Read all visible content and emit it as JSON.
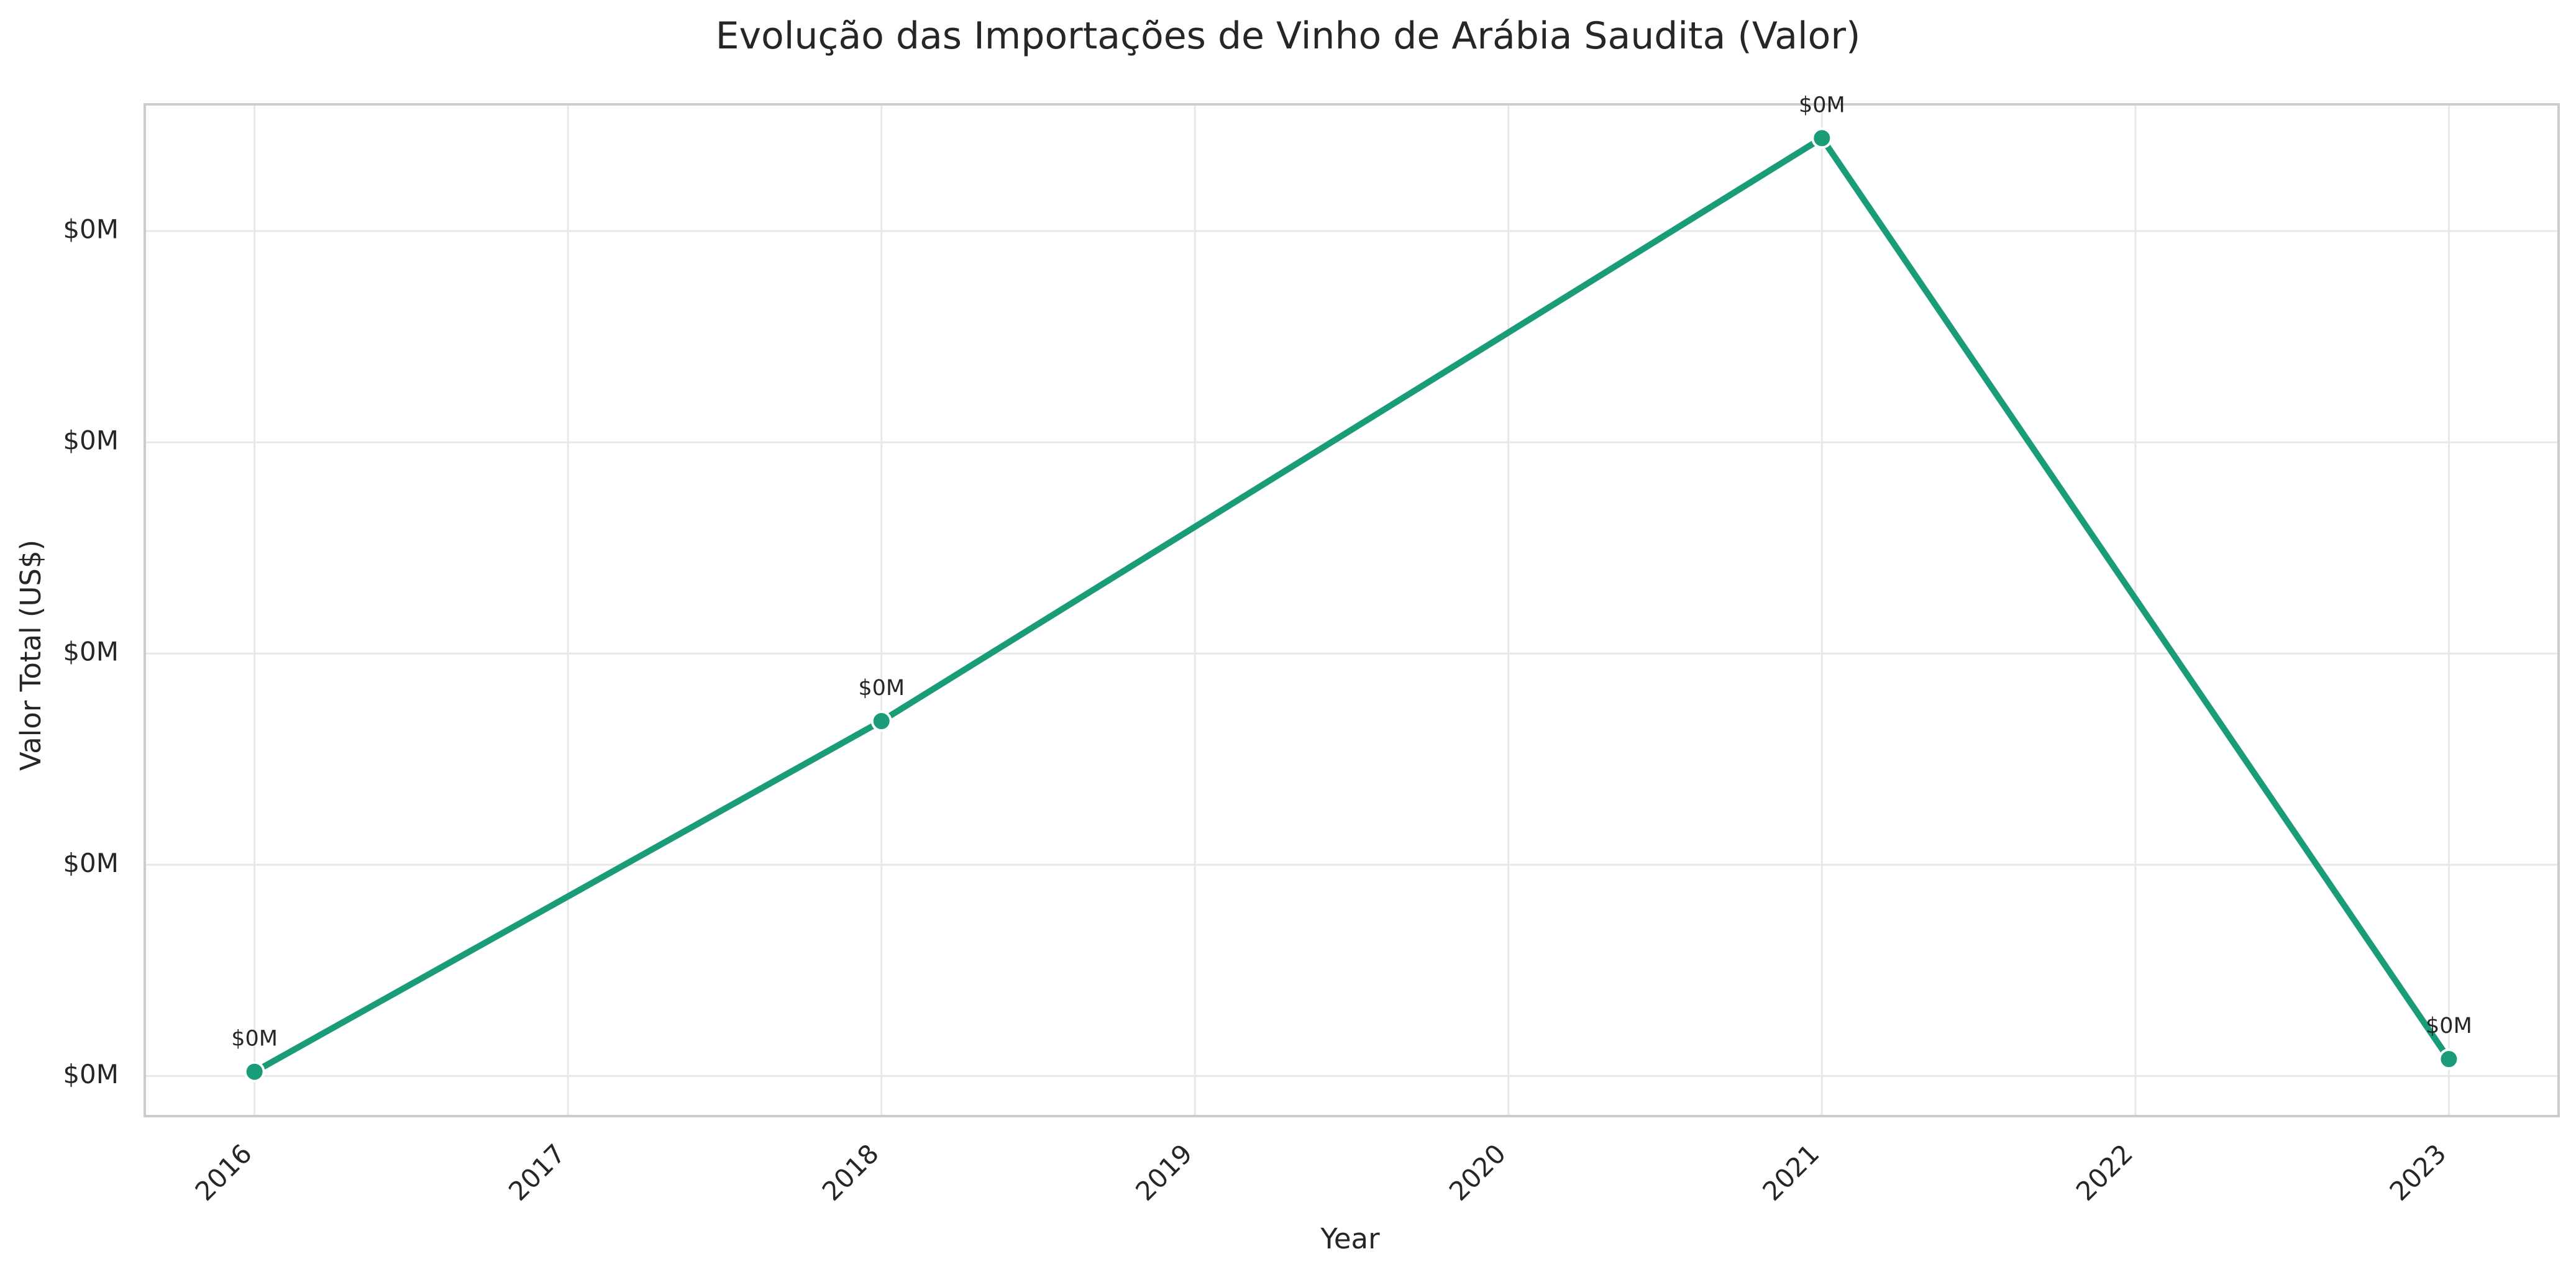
{
  "chart_data": {
    "type": "line",
    "title": "Evolução das Importações de Vinho de Arábia Saudita (Valor)",
    "xlabel": "Year",
    "ylabel": "Valor Total (US$)",
    "x_ticks": [
      "2016",
      "2017",
      "2018",
      "2019",
      "2020",
      "2021",
      "2022",
      "2023"
    ],
    "y_tick_labels": [
      "$0M",
      "$0M",
      "$0M",
      "$0M",
      "$0M"
    ],
    "y_ticks": [
      0,
      5000,
      10000,
      15000,
      20000
    ],
    "ylim": [
      -950,
      23000
    ],
    "xlim": [
      2015.65,
      2023.35
    ],
    "grid": true,
    "series": [
      {
        "x": [
          2016,
          2018,
          2021,
          2023
        ],
        "y": [
          100,
          8400,
          22200,
          400
        ],
        "labels": [
          "$0M",
          "$0M",
          "$0M",
          "$0M"
        ],
        "color": "#1a9c78"
      }
    ]
  }
}
